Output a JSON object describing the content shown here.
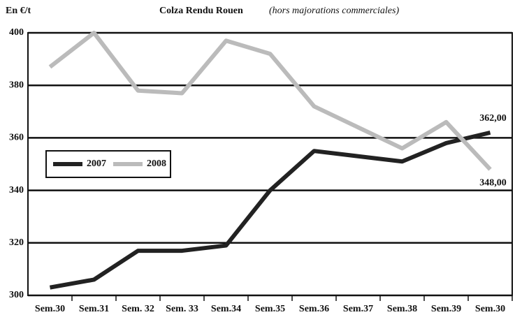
{
  "chart_data": {
    "type": "line",
    "title": "Colza Rendu Rouen",
    "subtitle": "(hors majorations commerciales)",
    "y_label": "En €/t",
    "categories": [
      "Sem.30",
      "Sem.31",
      "Sem. 32",
      "Sem. 33",
      "Sem.34",
      "Sem.35",
      "Sem.36",
      "Sem.37",
      "Sem.38",
      "Sem.39",
      "Sem.30"
    ],
    "series": [
      {
        "name": "2007",
        "color": "#222222",
        "values": [
          303,
          306,
          317,
          317,
          319,
          340,
          355,
          353,
          351,
          358,
          362
        ],
        "value_labels": [
          null,
          null,
          null,
          null,
          null,
          null,
          null,
          null,
          null,
          null,
          "362,00"
        ]
      },
      {
        "name": "2008",
        "color": "#bbbbbb",
        "values": [
          387,
          400,
          378,
          377,
          397,
          392,
          372,
          364,
          356,
          366,
          348
        ],
        "value_labels": [
          null,
          null,
          null,
          null,
          null,
          null,
          null,
          null,
          null,
          null,
          "348,00"
        ]
      }
    ],
    "ylim": [
      300,
      400
    ],
    "yticks": [
      300,
      320,
      340,
      360,
      380,
      400
    ],
    "grid": true
  }
}
